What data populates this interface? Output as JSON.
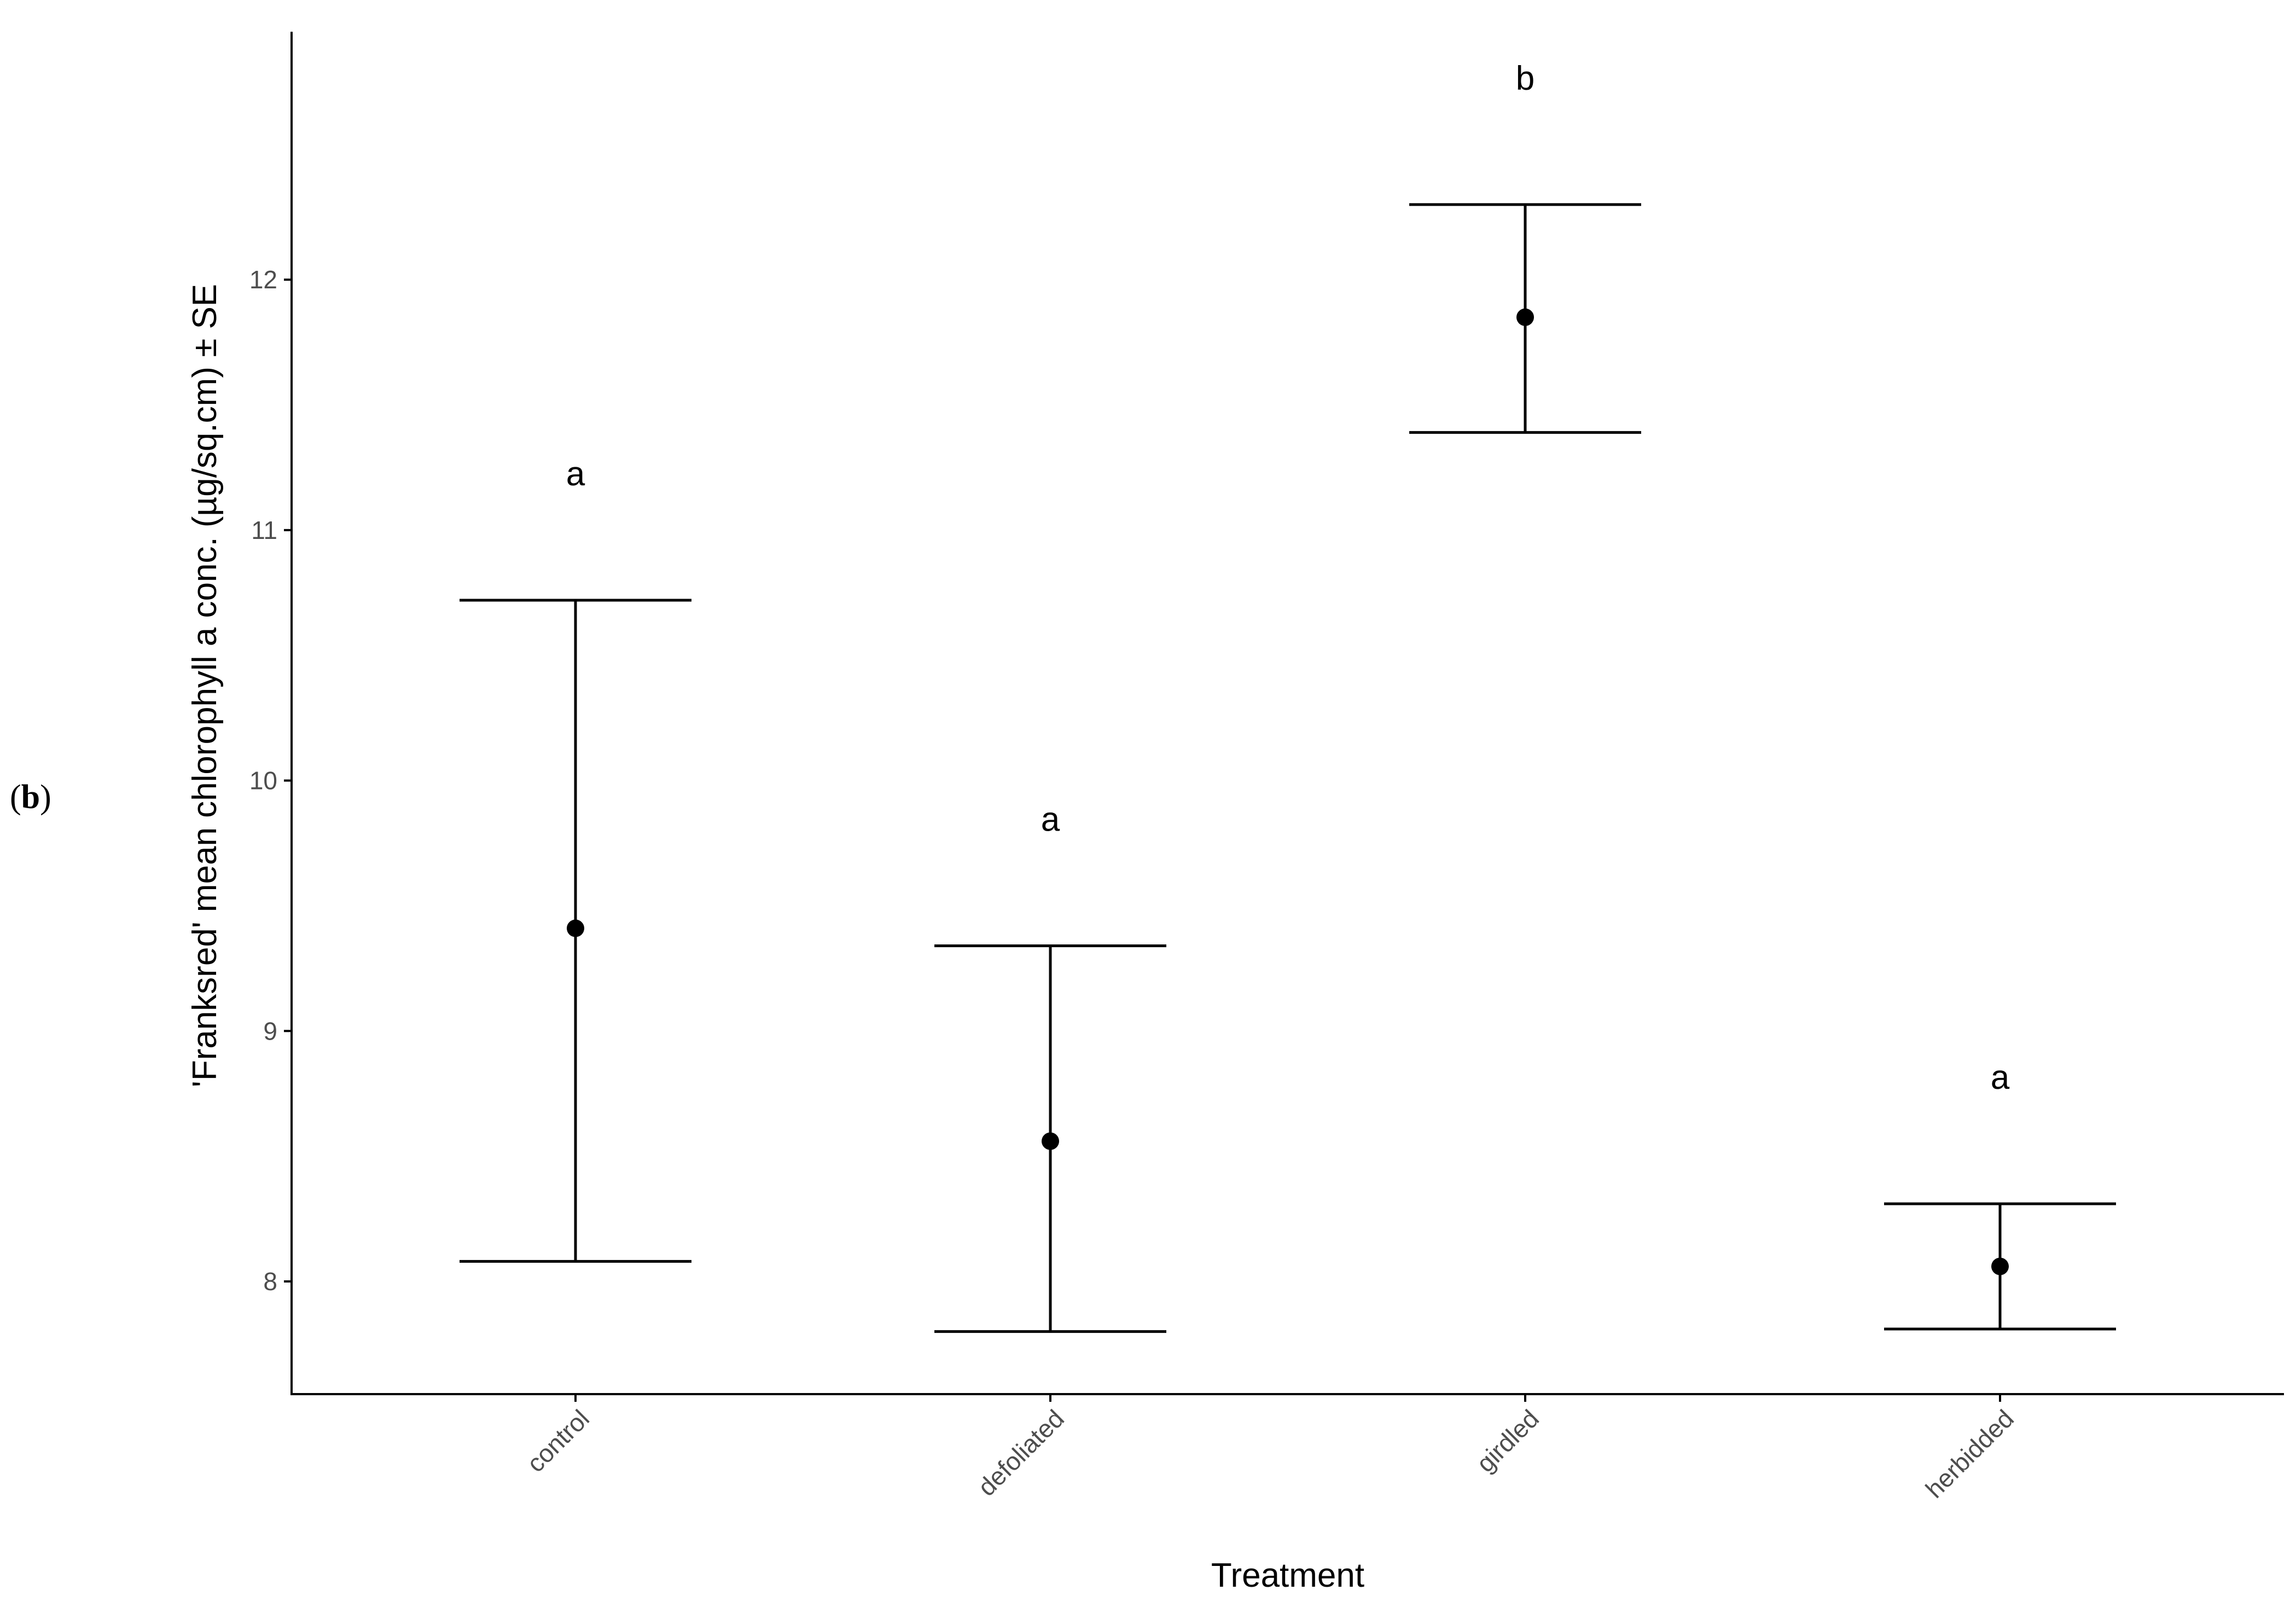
{
  "panel_label": {
    "open": "(",
    "letter": "b",
    "close": ")"
  },
  "chart_data": {
    "type": "scatter",
    "subtype": "point-with-error-bars",
    "title": "",
    "xlabel": "Treatment",
    "ylabel": "'Franksred' mean chlorophyll a conc. (µg/sq.cm) ± SE",
    "categories": [
      "control",
      "defoliated",
      "girdled",
      "herbidded"
    ],
    "means": [
      9.41,
      8.56,
      11.85,
      8.06
    ],
    "se_lower": [
      8.08,
      7.8,
      11.39,
      7.81
    ],
    "se_upper": [
      10.72,
      9.34,
      12.3,
      8.31
    ],
    "significance_letters": [
      "a",
      "a",
      "b",
      "a"
    ],
    "yticks": [
      8,
      9,
      10,
      11,
      12
    ],
    "ylim": [
      7.55,
      12.99
    ],
    "grid": false,
    "legend": "none",
    "colors": {
      "points": "#000000",
      "error_bars": "#000000",
      "axis": "#000000",
      "tick_labels": "#4d4d4d"
    }
  }
}
